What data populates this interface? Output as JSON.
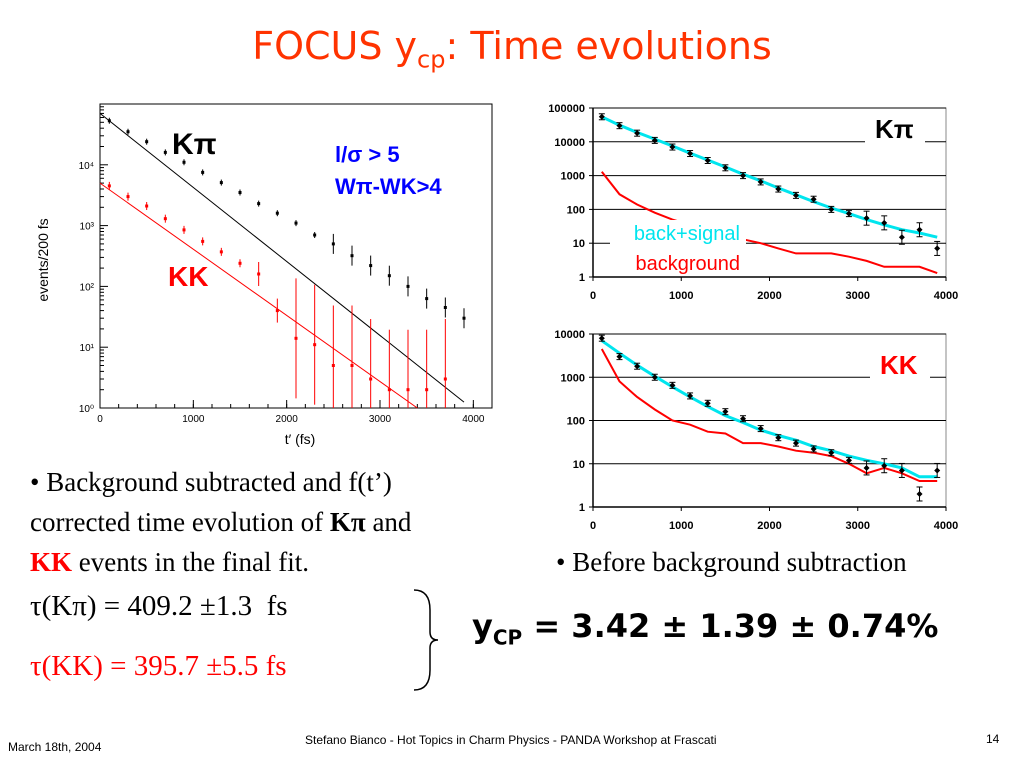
{
  "slide": {
    "title_main": "FOCUS y",
    "title_sub": "cp",
    "title_rest": ": Time evolutions",
    "left_text": {
      "line1": "• Background subtracted and f(t’)",
      "line2_pre": "corrected time evolution of ",
      "line2_kpi": "Kπ",
      "line2_post": " and",
      "line3_kk": "KK",
      "line3_post": " events in the final fit."
    },
    "right_note": "• Before background subtraction",
    "lifetimes": {
      "kpi": "τ(Kπ) = 409.2 ±1.3  fs",
      "kk": "τ(KK) = 395.7 ±5.5 fs"
    },
    "ycp": {
      "symbol": "y",
      "sub": "CP",
      "value": " = 3.42 ± 1.39 ± 0.74%"
    },
    "footer": {
      "date": "March 18th, 2004",
      "center": "Stefano Bianco - Hot Topics in Charm Physics - PANDA Workshop at Frascati",
      "page": "14"
    }
  },
  "colors": {
    "title": "#ff3300",
    "kpi_line": "#000000",
    "kk_line": "#ff0000",
    "fit": "#00e5ee",
    "bg": "#ff0000",
    "blue": "#0000ff"
  },
  "chart_data": [
    {
      "type": "scatter",
      "xlabel": "t′ (fs)",
      "ylabel": "events/200 fs",
      "xlim": [
        0,
        4200
      ],
      "ylog": true,
      "ylim": [
        1,
        100000
      ],
      "xticks": [
        "0",
        "1000",
        "2000",
        "3000",
        "4000"
      ],
      "yticks": [
        "10⁰",
        "10¹",
        "10²",
        "10³",
        "10⁴"
      ],
      "annotations": {
        "kpi": "Kπ",
        "kk": "KK",
        "cut1": "l/σ > 5",
        "cut2": "Wπ-WK>4"
      },
      "series": [
        {
          "name": "Kπ",
          "x": [
            100,
            300,
            500,
            700,
            900,
            1100,
            1300,
            1500,
            1700,
            1900,
            2100,
            2300,
            2500,
            2700,
            2900,
            3100,
            3300,
            3500,
            3700,
            3900
          ],
          "y": [
            53000,
            35000,
            24000,
            16000,
            11000,
            7500,
            5100,
            3500,
            2300,
            1600,
            1100,
            700,
            500,
            320,
            220,
            150,
            100,
            63,
            45,
            30
          ]
        },
        {
          "name": "KK",
          "x": [
            100,
            300,
            500,
            700,
            900,
            1100,
            1300,
            1500,
            1700,
            1900,
            2100,
            2300,
            2500,
            2700,
            2900,
            3100,
            3300,
            3500,
            3700
          ],
          "y": [
            4500,
            3000,
            2100,
            1300,
            850,
            550,
            370,
            240,
            160,
            40,
            14,
            11,
            5,
            5,
            3,
            2,
            2,
            2,
            3
          ]
        }
      ]
    },
    {
      "type": "line",
      "xlim": [
        0,
        4000
      ],
      "ylog": true,
      "ylim": [
        1,
        100000
      ],
      "xticks": [
        "0",
        "1000",
        "2000",
        "3000",
        "4000"
      ],
      "yticks": [
        "1",
        "10",
        "100",
        "1000",
        "10000",
        "100000"
      ],
      "annotations": {
        "label": "Kπ"
      },
      "legend": [
        "back+signal",
        "background"
      ],
      "series": [
        {
          "name": "back+signal",
          "x": [
            100,
            300,
            500,
            700,
            900,
            1100,
            1300,
            1500,
            1700,
            1900,
            2100,
            2300,
            2500,
            2700,
            2900,
            3100,
            3300,
            3500,
            3700,
            3900
          ],
          "y": [
            55000,
            31000,
            19000,
            12000,
            7500,
            4600,
            2900,
            1800,
            1100,
            700,
            430,
            270,
            170,
            110,
            75,
            50,
            35,
            25,
            20,
            15
          ]
        },
        {
          "name": "background",
          "x": [
            100,
            300,
            500,
            700,
            900,
            1100,
            1300,
            1500,
            1700,
            1900,
            2100,
            2300,
            2500,
            2700,
            2900,
            3100,
            3300,
            3500,
            3700,
            3900
          ],
          "y": [
            1300,
            280,
            140,
            80,
            50,
            35,
            25,
            18,
            13,
            10,
            7,
            5,
            5,
            5,
            4,
            3,
            2,
            2,
            2,
            1.3
          ]
        },
        {
          "name": "data",
          "x": [
            100,
            300,
            500,
            700,
            900,
            1100,
            1300,
            1500,
            1700,
            1900,
            2100,
            2300,
            2500,
            2700,
            2900,
            3100,
            3300,
            3500,
            3700,
            3900
          ],
          "y": [
            55000,
            30000,
            18000,
            11000,
            7000,
            4500,
            2800,
            1700,
            1000,
            650,
            400,
            260,
            200,
            100,
            75,
            55,
            40,
            15,
            25,
            7
          ]
        }
      ]
    },
    {
      "type": "line",
      "xlim": [
        0,
        4000
      ],
      "ylog": true,
      "ylim": [
        1,
        10000
      ],
      "xticks": [
        "0",
        "1000",
        "2000",
        "3000",
        "4000"
      ],
      "yticks": [
        "1",
        "10",
        "100",
        "1000",
        "10000"
      ],
      "annotations": {
        "label": "KK"
      },
      "series": [
        {
          "name": "back+signal",
          "x": [
            100,
            300,
            500,
            700,
            900,
            1100,
            1300,
            1500,
            1700,
            1900,
            2100,
            2300,
            2500,
            2700,
            2900,
            3100,
            3300,
            3500,
            3700,
            3900
          ],
          "y": [
            7000,
            3600,
            1900,
            1050,
            600,
            350,
            210,
            130,
            90,
            60,
            45,
            35,
            25,
            20,
            15,
            12,
            10,
            8,
            5,
            5
          ]
        },
        {
          "name": "background",
          "x": [
            100,
            300,
            500,
            700,
            900,
            1100,
            1300,
            1500,
            1700,
            1900,
            2100,
            2300,
            2500,
            2700,
            2900,
            3100,
            3300,
            3500,
            3700,
            3900
          ],
          "y": [
            4500,
            800,
            350,
            180,
            100,
            80,
            55,
            50,
            30,
            30,
            25,
            20,
            18,
            15,
            10,
            6,
            8,
            6,
            4,
            4
          ]
        },
        {
          "name": "data",
          "x": [
            100,
            300,
            500,
            700,
            900,
            1100,
            1300,
            1500,
            1700,
            1900,
            2100,
            2300,
            2500,
            2700,
            2900,
            3100,
            3300,
            3500,
            3700,
            3900
          ],
          "y": [
            8000,
            3000,
            1800,
            1000,
            650,
            370,
            250,
            160,
            110,
            65,
            40,
            30,
            22,
            18,
            12,
            8,
            9,
            7,
            2,
            7
          ]
        }
      ]
    }
  ]
}
